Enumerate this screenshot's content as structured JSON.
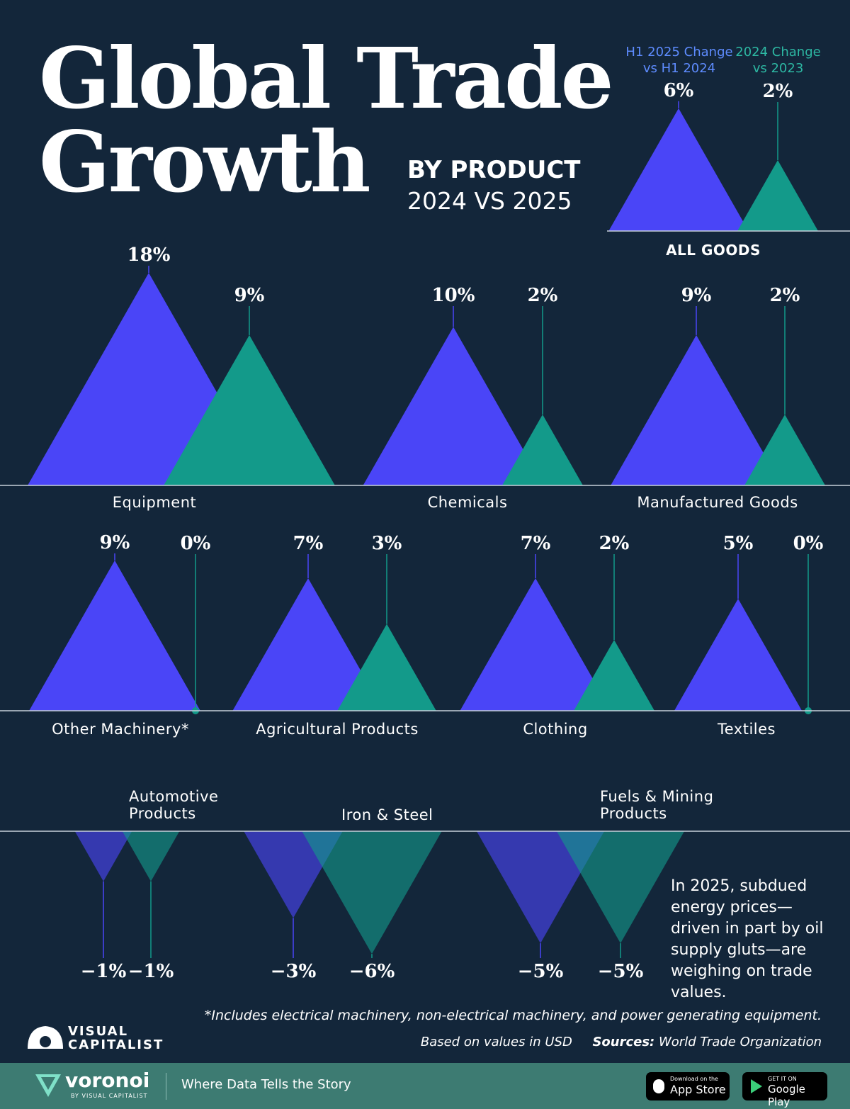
{
  "chart_data": {
    "type": "mountain",
    "title": "Global Trade Growth",
    "subtitle": "BY PRODUCT",
    "subtitle2": "2024 VS 2025",
    "scale": "sqrt",
    "categories": [
      "ALL GOODS",
      "Equipment",
      "Chemicals",
      "Manufactured Goods",
      "Other Machinery*",
      "Agricultural Products",
      "Clothing",
      "Textiles",
      "Automotive Products",
      "Iron & Steel",
      "Fuels & Mining Products"
    ],
    "series": [
      {
        "name": "H1 2025 Change vs H1 2024",
        "color": "#4a45f7",
        "values": [
          6,
          18,
          10,
          9,
          9,
          7,
          7,
          5,
          -1,
          -3,
          -5
        ],
        "value_labels": [
          "6%",
          "18%",
          "10%",
          "9%",
          "9%",
          "7%",
          "7%",
          "5%",
          "−1%",
          "−3%",
          "−5%"
        ]
      },
      {
        "name": "2024 Change vs 2023",
        "color": "#139a8a",
        "values": [
          2,
          9,
          2,
          2,
          0,
          3,
          2,
          0,
          -1,
          -6,
          -5
        ],
        "value_labels": [
          "2%",
          "9%",
          "2%",
          "2%",
          "0%",
          "3%",
          "2%",
          "0%",
          "−1%",
          "−6%",
          "−5%"
        ]
      }
    ],
    "annotation": "In 2025, subdued energy prices—driven in part by oil supply gluts—are weighing on trade values.",
    "footnote": "*Includes electrical machinery, non-electrical machinery, and power generating equipment.",
    "note": "Based on values in USD",
    "source_label": "Sources:",
    "source": "World Trade Organization",
    "brand": "VISUAL CAPITALIST",
    "footer": {
      "logo": "voronoi",
      "logo_sub": "BY VISUAL CAPITALIST",
      "tagline": "Where Data Tells the Story",
      "app_store_small": "Download on the",
      "app_store": "App Store",
      "google_small": "GET IT ON",
      "google": "Google Play"
    }
  }
}
